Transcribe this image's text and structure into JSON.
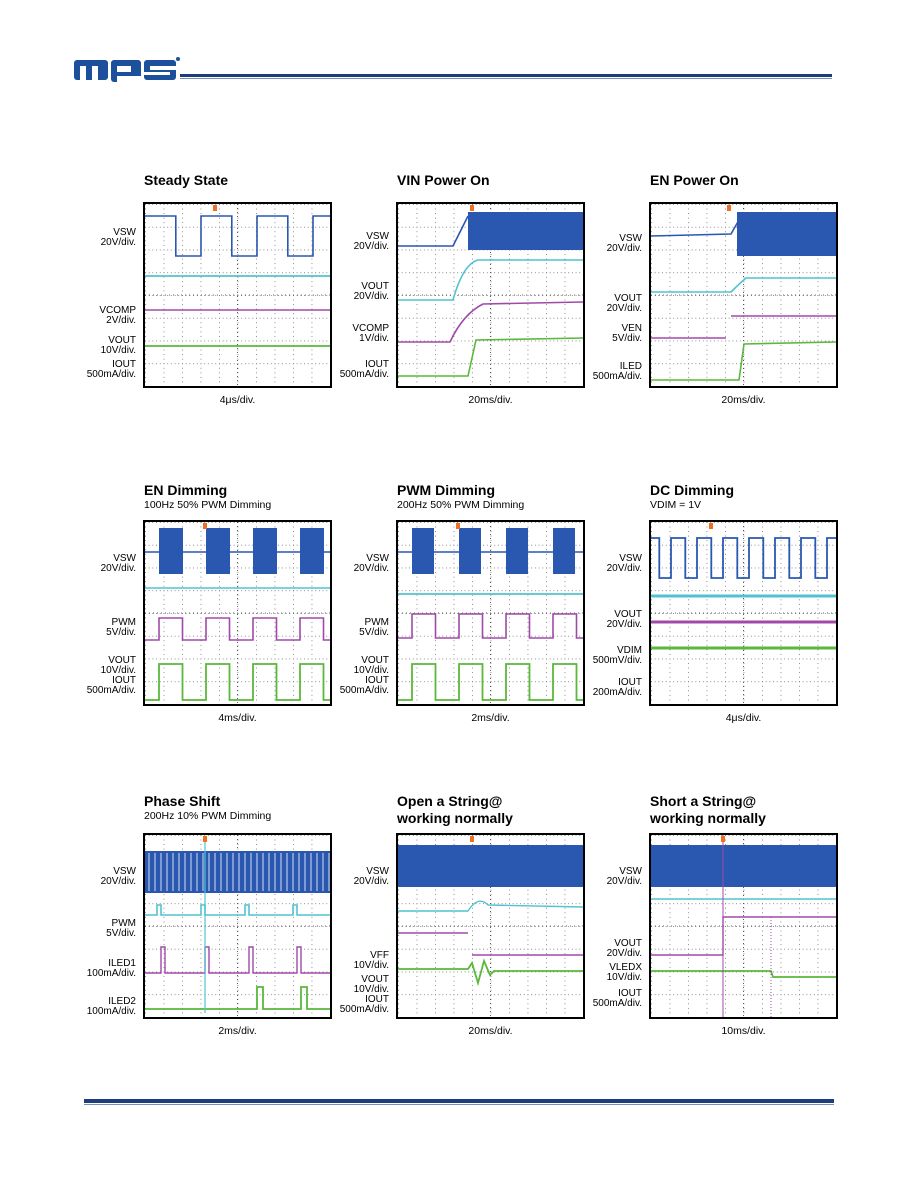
{
  "header": {
    "logo_text": "mps",
    "brand_color": "#1c4f9c"
  },
  "panels": [
    {
      "title": "Steady State",
      "subtitle": "",
      "timebase": "4μs/div.",
      "channels": [
        {
          "name": "VSW",
          "sub": "",
          "scale": "20V/div."
        },
        {
          "name": "VCOMP",
          "sub": "",
          "scale": "2V/div."
        },
        {
          "name": "VOUT",
          "sub": "",
          "scale": "10V/div."
        },
        {
          "name": "IOUT",
          "sub": "",
          "scale": "500mA/div."
        }
      ]
    },
    {
      "title": "VIN Power On",
      "subtitle": "",
      "timebase": "20ms/div.",
      "channels": [
        {
          "name": "VSW",
          "scale": "20V/div."
        },
        {
          "name": "VOUT",
          "scale": "20V/div."
        },
        {
          "name": "VCOMP",
          "scale": "1V/div."
        },
        {
          "name": "IOUT",
          "scale": "500mA/div."
        }
      ]
    },
    {
      "title": "EN Power On",
      "subtitle": "",
      "timebase": "20ms/div.",
      "channels": [
        {
          "name": "VSW",
          "scale": "20V/div."
        },
        {
          "name": "VOUT",
          "scale": "20V/div."
        },
        {
          "name": "VEN",
          "scale": "5V/div."
        },
        {
          "name": "ILED",
          "scale": "500mA/div."
        }
      ]
    },
    {
      "title": "EN Dimming",
      "subtitle": "100Hz 50% PWM Dimming",
      "timebase": "4ms/div.",
      "channels": [
        {
          "name": "VSW",
          "scale": "20V/div."
        },
        {
          "name": "PWM",
          "scale": "5V/div."
        },
        {
          "name": "VOUT",
          "scale": "10V/div."
        },
        {
          "name": "IOUT",
          "scale": "500mA/div."
        }
      ]
    },
    {
      "title": "PWM Dimming",
      "subtitle": "200Hz 50% PWM Dimming",
      "timebase": "2ms/div.",
      "channels": [
        {
          "name": "VSW",
          "scale": "20V/div."
        },
        {
          "name": "PWM",
          "scale": "5V/div."
        },
        {
          "name": "VOUT",
          "scale": "10V/div."
        },
        {
          "name": "IOUT",
          "scale": "500mA/div."
        }
      ]
    },
    {
      "title": "DC Dimming",
      "subtitle": "VDIM = 1V",
      "timebase": "4μs/div.",
      "channels": [
        {
          "name": "VSW",
          "scale": "20V/div."
        },
        {
          "name": "VOUT",
          "scale": "20V/div."
        },
        {
          "name": "VDIM",
          "scale": "500mV/div."
        },
        {
          "name": "IOUT",
          "scale": "200mA/div."
        }
      ]
    },
    {
      "title": "Phase Shift",
      "subtitle": "200Hz 10% PWM Dimming",
      "timebase": "2ms/div.",
      "channels": [
        {
          "name": "VSW",
          "scale": "20V/div."
        },
        {
          "name": "PWM",
          "scale": "5V/div."
        },
        {
          "name": "ILED1",
          "scale": "100mA/div."
        },
        {
          "name": "ILED2",
          "scale": "100mA/div."
        }
      ]
    },
    {
      "title": "Open a String@\nworking normally",
      "subtitle": "",
      "timebase": "20ms/div.",
      "channels": [
        {
          "name": "VSW",
          "scale": "20V/div."
        },
        {
          "name": "VFF",
          "scale": "10V/div."
        },
        {
          "name": "VOUT",
          "scale": "10V/div."
        },
        {
          "name": "IOUT",
          "scale": "500mA/div."
        }
      ]
    },
    {
      "title": "Short a String@\nworking normally",
      "subtitle": "",
      "timebase": "10ms/div.",
      "channels": [
        {
          "name": "VSW",
          "scale": "20V/div."
        },
        {
          "name": "VOUT",
          "scale": "20V/div."
        },
        {
          "name": "VLEDX",
          "scale": "10V/div."
        },
        {
          "name": "IOUT",
          "scale": "500mA/div."
        }
      ]
    }
  ],
  "colors": {
    "ch1": "#2a57b0",
    "ch2": "#4fc4d0",
    "ch3": "#a04aa8",
    "ch4": "#5ab83a",
    "trigger": "#f07020"
  }
}
